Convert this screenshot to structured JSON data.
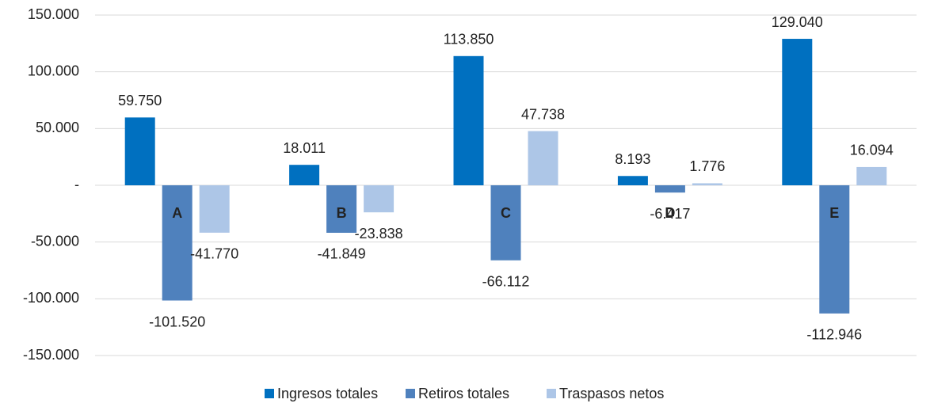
{
  "chart_data": {
    "type": "bar",
    "categories": [
      "A",
      "B",
      "C",
      "D",
      "E"
    ],
    "series": [
      {
        "name": "Ingresos totales",
        "color": "#0070c0",
        "values": [
          59750,
          18011,
          113850,
          8193,
          129040
        ],
        "value_labels": [
          "59.750",
          "18.011",
          "113.850",
          "8.193",
          "129.040"
        ]
      },
      {
        "name": "Retiros totales",
        "color": "#4f81bd",
        "values": [
          -101520,
          -41849,
          -66112,
          -6417,
          -112946
        ],
        "value_labels": [
          "-101.520",
          "-41.849",
          "-66.112",
          "-6.417",
          "-112.946"
        ]
      },
      {
        "name": "Traspasos netos",
        "color": "#adc6e7",
        "values": [
          -41770,
          -23838,
          47738,
          1776,
          16094
        ],
        "value_labels": [
          "-41.770",
          "-23.838",
          "47.738",
          "1.776",
          "16.094"
        ]
      }
    ],
    "ylim": [
      -150000,
      150000
    ],
    "yticks": [
      {
        "value": -150000,
        "label": "-150.000"
      },
      {
        "value": -100000,
        "label": "-100.000"
      },
      {
        "value": -50000,
        "label": "-50.000"
      },
      {
        "value": 0,
        "label": "-"
      },
      {
        "value": 50000,
        "label": "50.000"
      },
      {
        "value": 100000,
        "label": "100.000"
      },
      {
        "value": 150000,
        "label": "150.000"
      }
    ],
    "grid": true,
    "legend": "bottom"
  }
}
